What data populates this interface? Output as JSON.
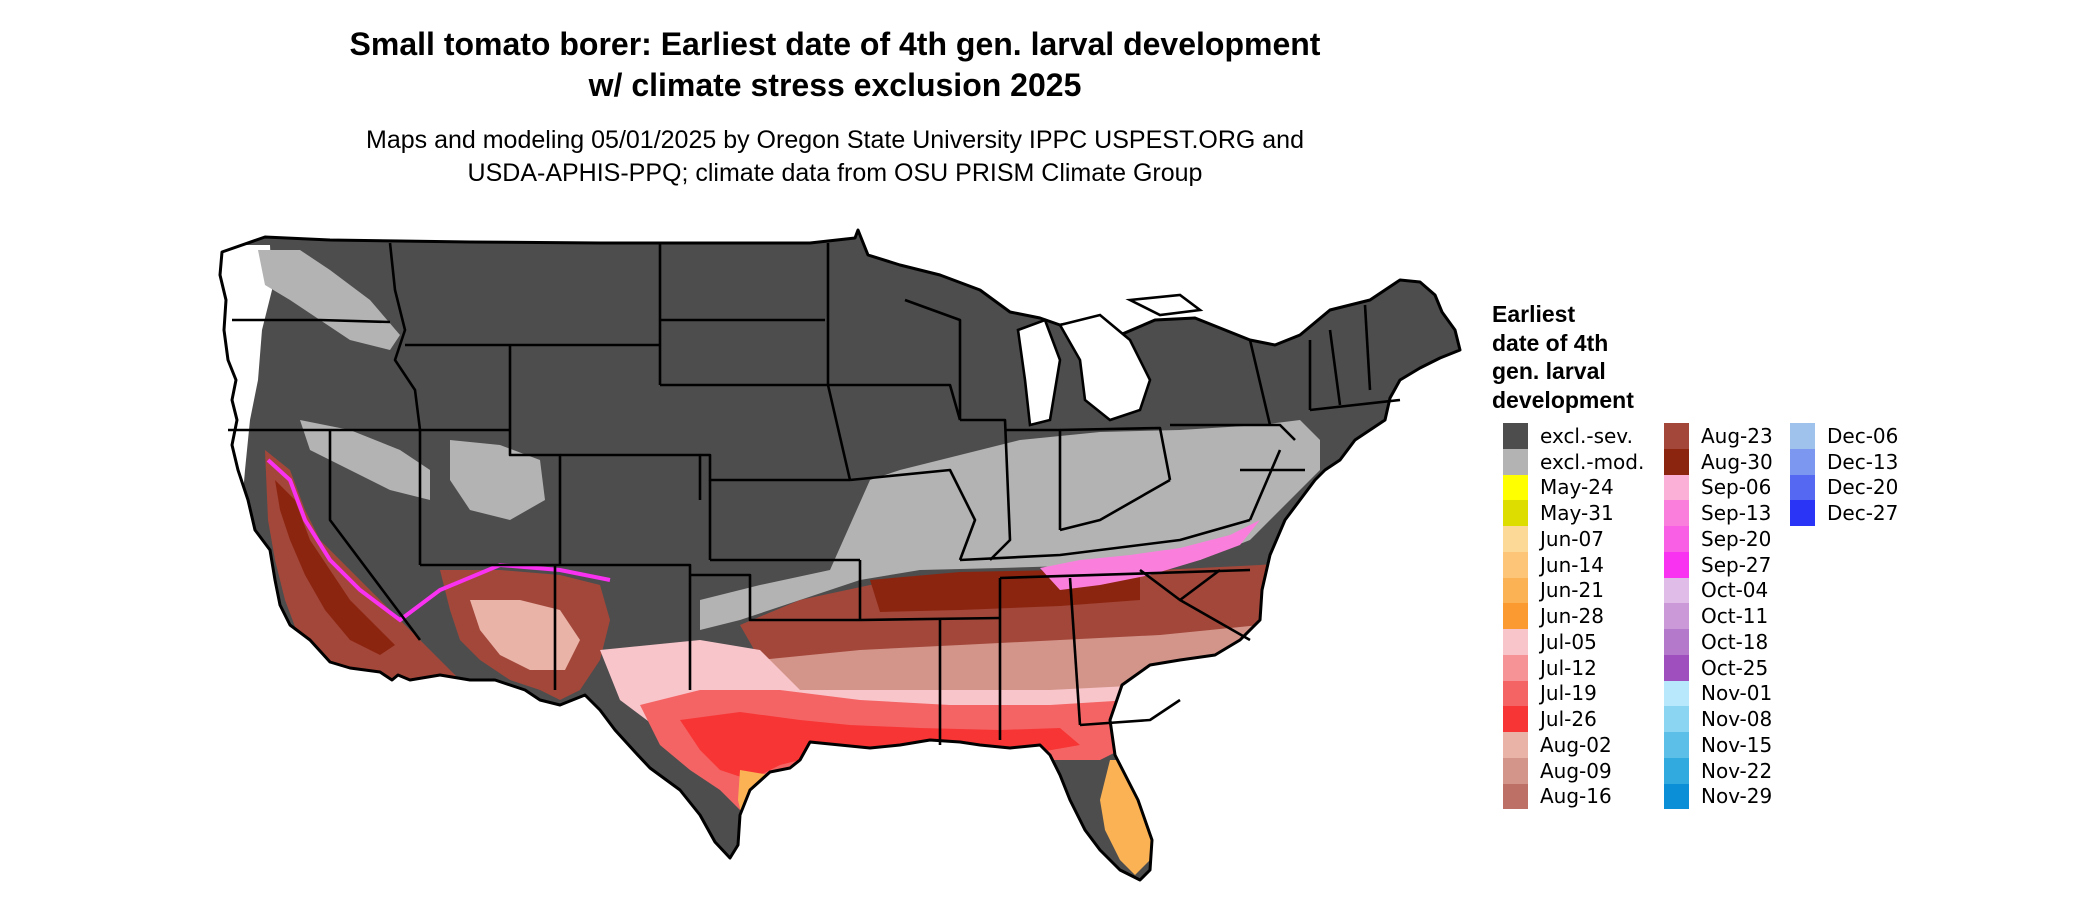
{
  "title_line1": "Small tomato borer: Earliest date of 4th gen. larval development",
  "title_line2": "w/ climate stress exclusion 2025",
  "subtitle_line1": "Maps and modeling 05/01/2025 by Oregon State University IPPC USPEST.ORG and",
  "subtitle_line2": "USDA-APHIS-PPQ; climate data from OSU PRISM Climate Group",
  "legend": {
    "title_lines": [
      "Earliest",
      "date of 4th",
      "gen. larval",
      "development"
    ],
    "columns": [
      [
        {
          "label": "excl.-sev.",
          "color": "#4d4d4d"
        },
        {
          "label": "excl.-mod.",
          "color": "#b3b3b3"
        },
        {
          "label": "May-24",
          "color": "#ffff00"
        },
        {
          "label": "May-31",
          "color": "#dddd00"
        },
        {
          "label": "Jun-07",
          "color": "#fdd998"
        },
        {
          "label": "Jun-14",
          "color": "#fcc577"
        },
        {
          "label": "Jun-21",
          "color": "#fbb254"
        },
        {
          "label": "Jun-28",
          "color": "#fa9a30"
        },
        {
          "label": "Jul-05",
          "color": "#f8c5cb"
        },
        {
          "label": "Jul-12",
          "color": "#f59396"
        },
        {
          "label": "Jul-19",
          "color": "#f56464"
        },
        {
          "label": "Jul-26",
          "color": "#f73535"
        },
        {
          "label": "Aug-02",
          "color": "#e9b3a8"
        },
        {
          "label": "Aug-09",
          "color": "#d3958a"
        },
        {
          "label": "Aug-16",
          "color": "#bd7066"
        }
      ],
      [
        {
          "label": "Aug-23",
          "color": "#a3473a"
        },
        {
          "label": "Aug-30",
          "color": "#8b2510"
        },
        {
          "label": "Sep-06",
          "color": "#fbb0d8"
        },
        {
          "label": "Sep-13",
          "color": "#fa7fdc"
        },
        {
          "label": "Sep-20",
          "color": "#f95fe5"
        },
        {
          "label": "Sep-27",
          "color": "#f832f0"
        },
        {
          "label": "Oct-04",
          "color": "#e0bde8"
        },
        {
          "label": "Oct-11",
          "color": "#cb99d8"
        },
        {
          "label": "Oct-18",
          "color": "#b579cc"
        },
        {
          "label": "Oct-25",
          "color": "#a04fbf"
        },
        {
          "label": "Nov-01",
          "color": "#b7e8fb"
        },
        {
          "label": "Nov-08",
          "color": "#8bd4f2"
        },
        {
          "label": "Nov-15",
          "color": "#5cbfe8"
        },
        {
          "label": "Nov-22",
          "color": "#30aadf"
        },
        {
          "label": "Nov-29",
          "color": "#0b8fd6"
        }
      ],
      [
        {
          "label": "Dec-06",
          "color": "#9ec2ec"
        },
        {
          "label": "Dec-13",
          "color": "#7c97ef"
        },
        {
          "label": "Dec-20",
          "color": "#5568f1"
        },
        {
          "label": "Dec-27",
          "color": "#2a34f6"
        }
      ]
    ]
  }
}
